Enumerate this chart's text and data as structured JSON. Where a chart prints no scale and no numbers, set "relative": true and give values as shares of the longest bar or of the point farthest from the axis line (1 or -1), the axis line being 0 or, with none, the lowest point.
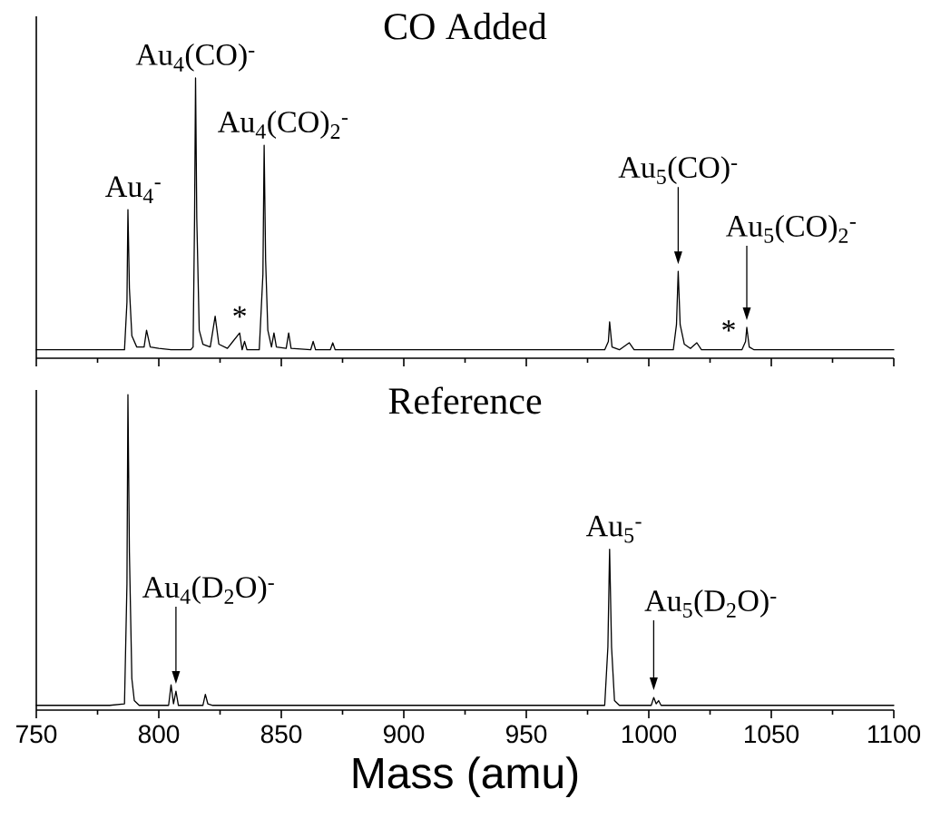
{
  "chart_data": [
    {
      "type": "line",
      "title": "CO Added",
      "relative": true,
      "color": "#000000",
      "xlim": [
        750,
        1100
      ],
      "xticks": [
        750,
        800,
        850,
        900,
        950,
        1000,
        1050,
        1100
      ],
      "tick_labels": false,
      "x": [
        750,
        770,
        786,
        787,
        787.4,
        788,
        789,
        791,
        794,
        795,
        796.5,
        800,
        805,
        813,
        814,
        814.6,
        815,
        815.5,
        816.5,
        818,
        821,
        823,
        824.5,
        828,
        833,
        834,
        835,
        836,
        841,
        842.5,
        843,
        843.6,
        844.5,
        846,
        847,
        848,
        852,
        853,
        854,
        862,
        863,
        864,
        870,
        871,
        872,
        900,
        950,
        982,
        983.5,
        984,
        985,
        988,
        992,
        994,
        1010,
        1011.3,
        1012,
        1012.8,
        1014.5,
        1017,
        1019.6,
        1021.5,
        1038,
        1039.5,
        1040,
        1041,
        1043,
        1070,
        1100
      ],
      "values": [
        0.03,
        0.03,
        0.03,
        0.2,
        0.53,
        0.25,
        0.08,
        0.04,
        0.04,
        0.1,
        0.04,
        0.035,
        0.03,
        0.03,
        0.04,
        0.5,
        1,
        0.5,
        0.1,
        0.05,
        0.04,
        0.15,
        0.05,
        0.035,
        0.09,
        0.03,
        0.06,
        0.03,
        0.03,
        0.3,
        0.76,
        0.35,
        0.1,
        0.04,
        0.09,
        0.04,
        0.035,
        0.09,
        0.035,
        0.03,
        0.06,
        0.03,
        0.03,
        0.055,
        0.03,
        0.03,
        0.03,
        0.03,
        0.06,
        0.13,
        0.04,
        0.03,
        0.055,
        0.03,
        0.03,
        0.12,
        0.31,
        0.12,
        0.05,
        0.035,
        0.055,
        0.03,
        0.03,
        0.06,
        0.11,
        0.04,
        0.03,
        0.03,
        0.03
      ],
      "annotations": [
        {
          "text": "Au$_{4}$$^{-}$",
          "x": 787.4,
          "y": 0.53
        },
        {
          "text": "Au$_{4}$(CO)$^{-}$",
          "x": 815,
          "y": 1
        },
        {
          "text": "Au$_{4}$(CO)$_{2}$$^{-}$",
          "x": 843,
          "y": 0.76
        },
        {
          "text": "*",
          "x": 833,
          "y": 0.09
        },
        {
          "text": "Au$_{5}$(CO)$^{-}$",
          "x": 1012,
          "y": 0.31
        },
        {
          "text": "*",
          "x": 1032.6,
          "y": 0.04
        },
        {
          "text": "Au$_{5}$(CO)$_{2}$$^{-}$",
          "x": 1040,
          "y": 0.11
        }
      ]
    },
    {
      "type": "line",
      "title": "Reference",
      "xlabel": "Mass (amu)",
      "relative": true,
      "color": "#000000",
      "xlim": [
        750,
        1100
      ],
      "xticks": [
        750,
        800,
        850,
        900,
        950,
        1000,
        1050,
        1100
      ],
      "tick_labels": "x",
      "x": [
        750,
        780,
        786,
        787,
        787.4,
        788,
        789,
        790,
        792,
        804,
        805,
        806,
        807,
        808,
        818,
        819,
        820,
        822,
        900,
        982,
        983.3,
        984,
        984.8,
        986,
        988,
        1001,
        1002,
        1003,
        1004,
        1005,
        1100
      ],
      "values": [
        0.015,
        0.015,
        0.02,
        0.4,
        1,
        0.5,
        0.1,
        0.03,
        0.015,
        0.015,
        0.08,
        0.02,
        0.06,
        0.015,
        0.015,
        0.05,
        0.02,
        0.015,
        0.015,
        0.015,
        0.2,
        0.51,
        0.2,
        0.03,
        0.015,
        0.015,
        0.04,
        0.02,
        0.03,
        0.015,
        0.015
      ],
      "annotations": [
        {
          "text": "Au$_{4}$(D$_{2}$O)$^{-}$",
          "x": 807,
          "y": 0.06
        },
        {
          "text": "Au$_{5}$$^{-}$",
          "x": 984,
          "y": 0.51
        },
        {
          "text": "Au$_{5}$(D$_{2}$O)$^{-}$",
          "x": 1002,
          "y": 0.04
        }
      ]
    }
  ]
}
